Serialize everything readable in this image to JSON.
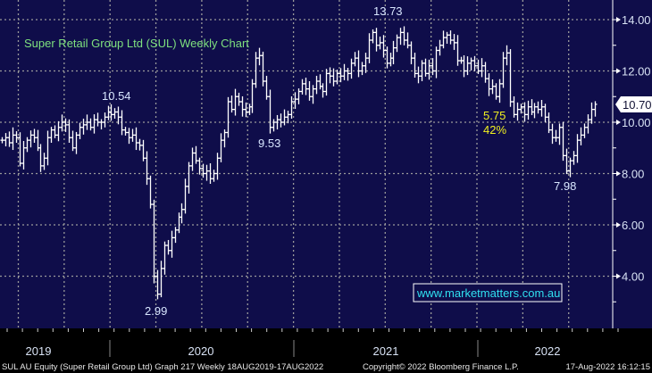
{
  "chart_data": {
    "type": "ohlc",
    "title": "Super Retail Group Ltd (SUL) Weekly Chart",
    "xlabel": "",
    "ylabel": "",
    "ylim": [
      2.3,
      14.8
    ],
    "grid": true,
    "y_ticks": [
      "14.00",
      "12.00",
      "10.00",
      "8.00",
      "6.00",
      "4.00"
    ],
    "y_tick_values": [
      14,
      12,
      10,
      8,
      6,
      4
    ],
    "x_ticks": [
      "2019",
      "2020",
      "2021",
      "2022"
    ],
    "last_price": "10.70",
    "weekly_closes": [
      9.3,
      9.4,
      9.2,
      9.5,
      9.4,
      8.4,
      9.0,
      9.3,
      9.5,
      9.4,
      9.0,
      8.3,
      8.6,
      9.4,
      9.7,
      9.5,
      9.8,
      10.0,
      9.9,
      9.4,
      9.0,
      9.5,
      9.8,
      9.9,
      10.0,
      9.8,
      10.1,
      10.0,
      10.0,
      10.2,
      10.4,
      10.3,
      10.4,
      10.2,
      9.7,
      9.6,
      9.4,
      9.5,
      9.2,
      9.1,
      8.6,
      7.8,
      6.8,
      4.0,
      3.3,
      4.3,
      5.2,
      5.0,
      5.5,
      5.8,
      6.3,
      6.6,
      7.5,
      8.3,
      8.8,
      8.5,
      8.2,
      8.0,
      8.1,
      7.8,
      8.0,
      8.6,
      9.3,
      9.6,
      10.8,
      10.5,
      11.0,
      10.8,
      10.5,
      10.4,
      10.6,
      11.5,
      12.5,
      12.6,
      11.6,
      11.0,
      9.8,
      10.0,
      10.1,
      10.0,
      10.2,
      10.3,
      10.8,
      10.9,
      11.2,
      11.5,
      11.3,
      11.0,
      11.3,
      11.6,
      11.4,
      11.2,
      11.9,
      11.8,
      11.6,
      11.9,
      11.8,
      12.0,
      11.9,
      12.3,
      12.5,
      12.0,
      12.2,
      12.5,
      13.2,
      13.5,
      13.0,
      13.1,
      12.8,
      12.3,
      12.5,
      12.9,
      13.3,
      13.5,
      13.2,
      13.0,
      12.5,
      11.9,
      11.8,
      12.3,
      11.9,
      12.2,
      12.0,
      12.8,
      13.0,
      13.3,
      13.4,
      13.2,
      13.1,
      12.4,
      12.4,
      12.0,
      12.3,
      12.4,
      12.2,
      12.0,
      12.2,
      11.7,
      11.3,
      11.4,
      11.0,
      11.5,
      12.5,
      12.7,
      10.8,
      10.3,
      10.5,
      10.6,
      10.3,
      10.6,
      10.4,
      10.6,
      10.5,
      10.6,
      10.2,
      9.7,
      9.4,
      9.4,
      9.8,
      8.7,
      8.1,
      8.5,
      8.7,
      9.3,
      9.5,
      9.8,
      10.1,
      10.5,
      10.7
    ],
    "annotations": [
      {
        "text": "10.54",
        "kind": "high"
      },
      {
        "text": "2.99",
        "kind": "low"
      },
      {
        "text": "9.53",
        "kind": "low"
      },
      {
        "text": "13.73",
        "kind": "high"
      },
      {
        "text": "5.75",
        "kind": "decline"
      },
      {
        "text": "42%",
        "kind": "decline"
      },
      {
        "text": "7.98",
        "kind": "low"
      }
    ],
    "watermark": "www.marketmatters.com.au"
  },
  "footer": {
    "left": "SUL AU Equity (Super Retail Group Ltd) Graph 217  Weekly 18AUG2019-17AUG2022",
    "center": "Copyright© 2022 Bloomberg Finance L.P.",
    "right": "17-Aug-2022 16:12:15"
  },
  "colors": {
    "background": "#0f0d4a",
    "bars": "#ffffff",
    "title": "#7ee07e",
    "decline": "#f0f020",
    "watermark": "#30e0f0"
  }
}
